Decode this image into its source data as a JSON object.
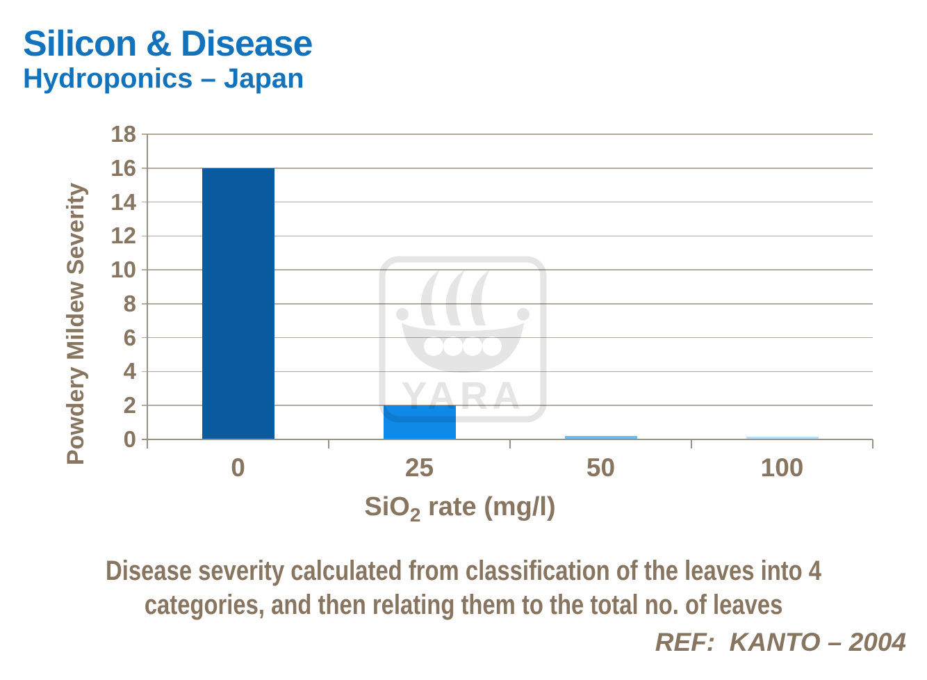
{
  "slide": {
    "title": "Silicon & Disease",
    "subtitle": "Hydroponics – Japan",
    "caption_line1": "Disease severity calculated from classification of the leaves into 4",
    "caption_line2": "categories, and then relating them to the total no. of leaves",
    "reference": "REF:  KANTO – 2004"
  },
  "watermark": {
    "brand": "YARA",
    "icon": "yara-viking-ship-logo",
    "color": "#E5E5E5"
  },
  "chart_data": {
    "type": "bar",
    "title": "",
    "categories": [
      "0",
      "25",
      "50",
      "100"
    ],
    "values": [
      16,
      2,
      0.2,
      0.15
    ],
    "bar_colors": [
      "#0A5BA0",
      "#0F89E8",
      "#6FBAF0",
      "#BCDDF8"
    ],
    "xlabel": "SiO2 rate (mg/l)",
    "xlabel_parts": {
      "main": "SiO",
      "sub": "2",
      "rest": " rate (mg/l)"
    },
    "ylabel": "Powdery Mildew Severity",
    "ylim": [
      0,
      18
    ],
    "ytick_step": 2,
    "grid": true,
    "legend": false,
    "axis_text_color": "#877560",
    "grid_color": "#B4AA9E",
    "axis_line_color": "#9A9083",
    "title_color": "#1273BC",
    "background": "#FFFFFF"
  }
}
